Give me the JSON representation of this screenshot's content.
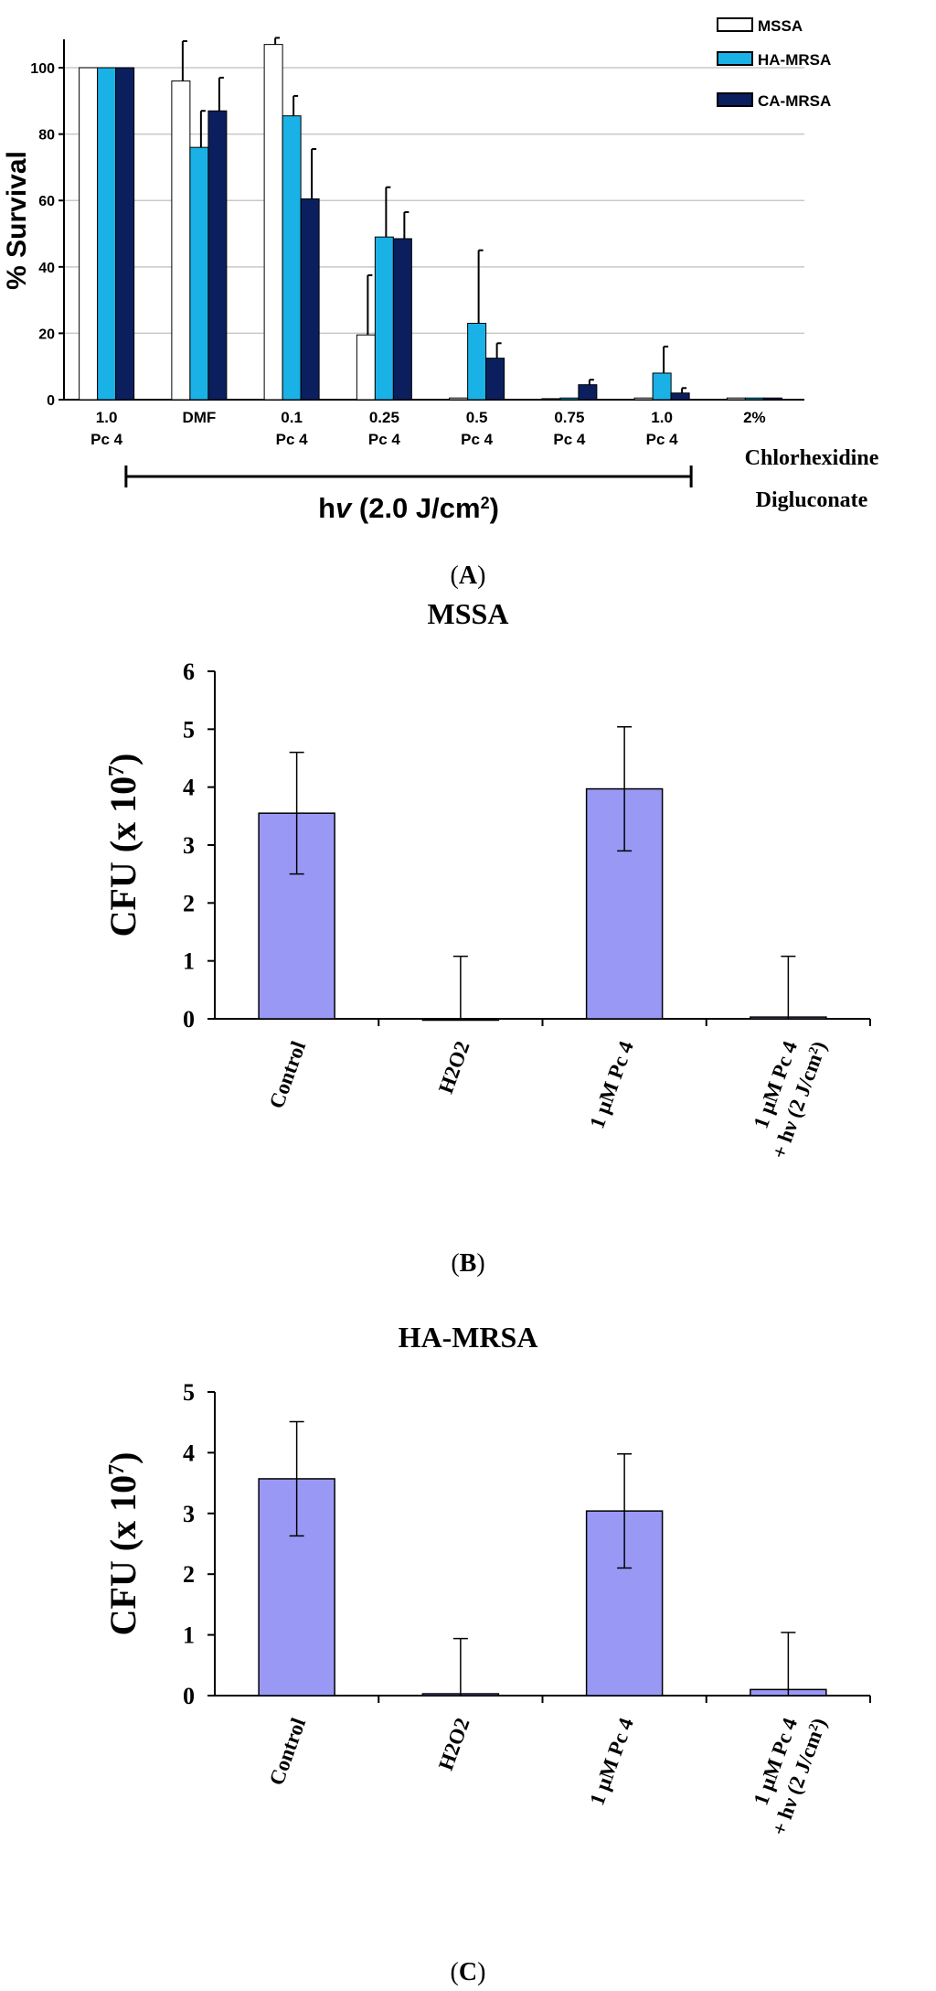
{
  "panels": {
    "a": {
      "label_prefix": "(",
      "label_letter": "A",
      "label_suffix": ")"
    },
    "b": {
      "label_prefix": "(",
      "label_letter": "B",
      "label_suffix": ")"
    },
    "c": {
      "label_prefix": "(",
      "label_letter": "C",
      "label_suffix": ")"
    }
  },
  "colors": {
    "mssa": "#ffffff",
    "ha_mrsa": "#1ab2e6",
    "ca_mrsa": "#0b1f5e",
    "bar_purple": "#9999f5",
    "grid": "#c8c8c8"
  },
  "chart_data": [
    {
      "type": "bar",
      "panel": "A",
      "title": "",
      "ylabel": "% Survival",
      "ylim": [
        0,
        108
      ],
      "yticks": [
        0,
        20,
        40,
        60,
        80,
        100
      ],
      "grid": true,
      "legend_position": "top-right",
      "categories": [
        {
          "line1": "1.0",
          "line2": "Pc 4"
        },
        {
          "line1": "DMF",
          "line2": ""
        },
        {
          "line1": "0.1",
          "line2": "Pc 4"
        },
        {
          "line1": "0.25",
          "line2": "Pc 4"
        },
        {
          "line1": "0.5",
          "line2": "Pc 4"
        },
        {
          "line1": "0.75",
          "line2": "Pc 4"
        },
        {
          "line1": "1.0",
          "line2": "Pc 4"
        },
        {
          "line1": "2%",
          "line2": ""
        }
      ],
      "series": [
        {
          "name": "MSSA",
          "values": [
            100,
            96,
            107,
            19.5,
            0.5,
            0.3,
            0.5,
            0.5
          ],
          "errors": [
            0,
            12,
            2,
            18,
            0.5,
            0.3,
            0.5,
            0.5
          ]
        },
        {
          "name": "HA-MRSA",
          "values": [
            100,
            76,
            85.5,
            49,
            23,
            0.5,
            8,
            0.5
          ],
          "errors": [
            0,
            11,
            6,
            15,
            22,
            0.5,
            8,
            0.5
          ]
        },
        {
          "name": "CA-MRSA",
          "values": [
            100,
            87,
            60.5,
            48.5,
            12.5,
            4.5,
            2,
            0.5
          ],
          "errors": [
            0,
            10,
            15,
            8,
            4.5,
            1.5,
            1.5,
            0.5
          ]
        }
      ],
      "bracket_label_pre": "h",
      "bracket_label_italic": "v",
      "bracket_label_mid": " (2.0 J/cm",
      "bracket_label_sup": "2",
      "bracket_label_post": ")",
      "side_label_line1": "Chlorhexidine",
      "side_label_line2": "Digluconate"
    },
    {
      "type": "bar",
      "panel": "B",
      "title": "MSSA",
      "ylabel_pre": "CFU (x 10",
      "ylabel_sup": "7",
      "ylabel_post": ")",
      "ylim": [
        0,
        6
      ],
      "yticks": [
        0,
        1,
        2,
        3,
        4,
        5,
        6
      ],
      "categories": [
        {
          "line1": "Control",
          "line2": ""
        },
        {
          "line1": "H2O2",
          "line2": ""
        },
        {
          "line1": "1 µM Pc 4",
          "line2": ""
        },
        {
          "line1": "1 µM Pc 4",
          "line2": "+ hν (2 J/cm",
          "sup": "2",
          "post": ")"
        }
      ],
      "values": [
        3.55,
        0.0,
        3.97,
        0.03
      ],
      "errors": [
        1.05,
        1.08,
        1.07,
        1.05
      ]
    },
    {
      "type": "bar",
      "panel": "C",
      "title": "HA-MRSA",
      "ylabel_pre": "CFU (x 10",
      "ylabel_sup": "7",
      "ylabel_post": ")",
      "ylim": [
        0,
        5
      ],
      "yticks": [
        0,
        1,
        2,
        3,
        4,
        5
      ],
      "categories": [
        {
          "line1": "Control",
          "line2": ""
        },
        {
          "line1": "H2O2",
          "line2": ""
        },
        {
          "line1": "1 µM Pc 4",
          "line2": ""
        },
        {
          "line1": "1 µM Pc 4",
          "line2": "+ hν (2 J/cm",
          "sup": "2",
          "post": ")"
        }
      ],
      "values": [
        3.57,
        0.03,
        3.04,
        0.1
      ],
      "errors": [
        0.94,
        0.91,
        0.94,
        0.94
      ]
    }
  ]
}
